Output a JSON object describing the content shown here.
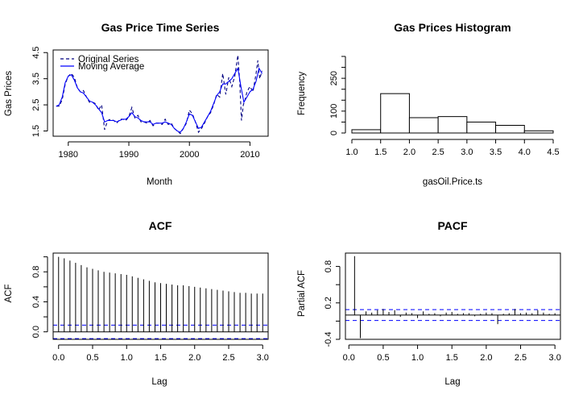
{
  "chart_data": [
    {
      "type": "line",
      "title": "Gas Price Time Series",
      "xlabel": "Month",
      "ylabel": "Gas Prices",
      "xlim": [
        1977.5,
        2013
      ],
      "ylim": [
        1.3,
        4.6
      ],
      "x_ticks": [
        "1980",
        "1990",
        "2000",
        "2010"
      ],
      "x_tick_values": [
        1980,
        1990,
        2000,
        2010
      ],
      "y_ticks": [
        "1.5",
        "2.5",
        "3.5",
        "4.5"
      ],
      "y_tick_values": [
        1.5,
        2.5,
        3.5,
        4.5
      ],
      "legend_position": "top-left",
      "series": [
        {
          "name": "Original Series",
          "style": "dashed",
          "color": "#000080",
          "x": [
            1978,
            1978.5,
            1979,
            1979.5,
            1980,
            1980.5,
            1981,
            1981.5,
            1982,
            1982.5,
            1983,
            1983.5,
            1984,
            1984.5,
            1985,
            1985.5,
            1986,
            1986.5,
            1987,
            1987.5,
            1988,
            1988.5,
            1989,
            1989.5,
            1990,
            1990.5,
            1991,
            1991.5,
            1992,
            1992.5,
            1993,
            1993.5,
            1994,
            1994.5,
            1995,
            1995.5,
            1996,
            1996.5,
            1997,
            1997.5,
            1998,
            1998.5,
            1999,
            1999.5,
            2000,
            2000.5,
            2001,
            2001.5,
            2002,
            2002.5,
            2003,
            2003.5,
            2004,
            2004.5,
            2005,
            2005.5,
            2006,
            2006.5,
            2007,
            2007.5,
            2008,
            2008.3,
            2008.6,
            2008.9,
            2009.2,
            2009.5,
            2010,
            2010.5,
            2011,
            2011.3,
            2011.6,
            2012
          ],
          "values": [
            2.45,
            2.45,
            2.7,
            3.3,
            3.6,
            3.7,
            3.55,
            3.15,
            3.0,
            3.05,
            2.8,
            2.6,
            2.6,
            2.55,
            2.3,
            2.5,
            1.55,
            1.9,
            1.95,
            1.9,
            1.8,
            1.95,
            1.95,
            1.9,
            2.05,
            2.4,
            2.0,
            2.1,
            1.85,
            1.85,
            1.8,
            1.9,
            1.7,
            1.8,
            1.8,
            1.75,
            1.95,
            1.75,
            1.8,
            1.6,
            1.5,
            1.4,
            1.6,
            1.8,
            2.3,
            2.15,
            1.85,
            1.45,
            1.6,
            1.8,
            2.05,
            2.2,
            2.5,
            2.9,
            2.8,
            3.7,
            2.9,
            3.55,
            3.2,
            3.6,
            4.4,
            3.4,
            1.9,
            2.5,
            2.7,
            3.0,
            3.2,
            3.0,
            3.7,
            4.2,
            3.5,
            3.8
          ]
        },
        {
          "name": "Moving Average",
          "style": "solid",
          "color": "#0000ff",
          "x": [
            1978,
            1978.5,
            1979,
            1979.5,
            1980,
            1980.5,
            1981,
            1981.5,
            1982,
            1982.5,
            1983,
            1983.5,
            1984,
            1984.5,
            1985,
            1985.5,
            1986,
            1986.5,
            1987,
            1987.5,
            1988,
            1988.5,
            1989,
            1989.5,
            1990,
            1990.5,
            1991,
            1991.5,
            1992,
            1992.5,
            1993,
            1993.5,
            1994,
            1994.5,
            1995,
            1995.5,
            1996,
            1996.5,
            1997,
            1997.5,
            1998,
            1998.5,
            1999,
            1999.5,
            2000,
            2000.5,
            2001,
            2001.5,
            2002,
            2002.5,
            2003,
            2003.5,
            2004,
            2004.5,
            2005,
            2005.5,
            2006,
            2006.5,
            2007,
            2007.5,
            2008,
            2008.5,
            2009,
            2009.5,
            2010,
            2010.5,
            2011,
            2011.5,
            2012
          ],
          "values": [
            2.45,
            2.5,
            2.8,
            3.35,
            3.6,
            3.65,
            3.45,
            3.15,
            3.0,
            2.95,
            2.8,
            2.65,
            2.6,
            2.5,
            2.35,
            2.2,
            1.85,
            1.9,
            1.9,
            1.9,
            1.85,
            1.9,
            1.95,
            1.95,
            2.05,
            2.2,
            2.05,
            2.0,
            1.9,
            1.85,
            1.85,
            1.85,
            1.75,
            1.8,
            1.8,
            1.8,
            1.85,
            1.8,
            1.75,
            1.6,
            1.5,
            1.45,
            1.6,
            1.85,
            2.15,
            2.1,
            1.85,
            1.6,
            1.65,
            1.85,
            2.05,
            2.25,
            2.55,
            2.85,
            3.0,
            3.3,
            3.3,
            3.4,
            3.5,
            3.7,
            3.9,
            3.2,
            2.6,
            2.8,
            3.0,
            3.1,
            3.4,
            3.9,
            3.7
          ]
        }
      ]
    },
    {
      "type": "bar",
      "title": "Gas Prices Histogram",
      "xlabel": "gasOil.Price.ts",
      "ylabel": "Frequency",
      "xlim": [
        1.0,
        4.5
      ],
      "ylim": [
        0,
        350
      ],
      "x_ticks": [
        "1.0",
        "1.5",
        "2.0",
        "2.5",
        "3.0",
        "3.5",
        "4.0",
        "4.5"
      ],
      "x_tick_values": [
        1.0,
        1.5,
        2.0,
        2.5,
        3.0,
        3.5,
        4.0,
        4.5
      ],
      "y_ticks": [
        "0",
        "100",
        "250"
      ],
      "y_tick_values": [
        0,
        50,
        100,
        150,
        200,
        250,
        300,
        350
      ],
      "y_tick_label_values": [
        0,
        100,
        250
      ],
      "bins": [
        [
          1.0,
          1.5
        ],
        [
          1.5,
          2.0
        ],
        [
          2.0,
          2.5
        ],
        [
          2.5,
          3.0
        ],
        [
          3.0,
          3.5
        ],
        [
          3.5,
          4.0
        ],
        [
          4.0,
          4.5
        ]
      ],
      "values": [
        15,
        180,
        70,
        75,
        50,
        35,
        10
      ]
    },
    {
      "type": "bar",
      "title": "ACF",
      "xlabel": "Lag",
      "ylabel": "ACF",
      "xlim": [
        -0.08,
        3.08
      ],
      "ylim": [
        -0.1,
        1.05
      ],
      "x_ticks": [
        "0.0",
        "0.5",
        "1.0",
        "1.5",
        "2.0",
        "2.5",
        "3.0"
      ],
      "x_tick_values": [
        0,
        0.5,
        1.0,
        1.5,
        2.0,
        2.5,
        3.0
      ],
      "y_ticks": [
        "0.0",
        "0.4",
        "0.8"
      ],
      "y_tick_values": [
        0.0,
        0.2,
        0.4,
        0.6,
        0.8,
        1.0
      ],
      "y_tick_label_values": [
        0.0,
        0.4,
        0.8
      ],
      "confidence_bounds": [
        0.09,
        -0.09
      ],
      "x": [
        0.0,
        0.083,
        0.167,
        0.25,
        0.333,
        0.417,
        0.5,
        0.583,
        0.667,
        0.75,
        0.833,
        0.917,
        1.0,
        1.083,
        1.167,
        1.25,
        1.333,
        1.417,
        1.5,
        1.583,
        1.667,
        1.75,
        1.833,
        1.917,
        2.0,
        2.083,
        2.167,
        2.25,
        2.333,
        2.417,
        2.5,
        2.583,
        2.667,
        2.75,
        2.833,
        2.917,
        3.0
      ],
      "values": [
        1.0,
        0.98,
        0.95,
        0.92,
        0.89,
        0.86,
        0.84,
        0.82,
        0.8,
        0.79,
        0.78,
        0.77,
        0.76,
        0.74,
        0.72,
        0.7,
        0.68,
        0.66,
        0.65,
        0.64,
        0.63,
        0.62,
        0.62,
        0.61,
        0.6,
        0.59,
        0.58,
        0.57,
        0.56,
        0.55,
        0.54,
        0.53,
        0.52,
        0.52,
        0.51,
        0.51,
        0.51
      ]
    },
    {
      "type": "bar",
      "title": "PACF",
      "xlabel": "Lag",
      "ylabel": "Partial ACF",
      "xlim": [
        -0.05,
        3.08
      ],
      "ylim": [
        -0.4,
        1.02
      ],
      "x_ticks": [
        "0.0",
        "0.5",
        "1.0",
        "1.5",
        "2.0",
        "2.5",
        "3.0"
      ],
      "x_tick_values": [
        0,
        0.5,
        1.0,
        1.5,
        2.0,
        2.5,
        3.0
      ],
      "y_ticks": [
        "-0.4",
        "0.2",
        "0.8"
      ],
      "y_tick_values": [
        -0.4,
        -0.1,
        0.2,
        0.5,
        0.8
      ],
      "y_tick_label_values": [
        -0.4,
        0.2,
        0.8
      ],
      "confidence_bounds": [
        0.09,
        -0.09
      ],
      "x": [
        0.083,
        0.167,
        0.25,
        0.333,
        0.417,
        0.5,
        0.583,
        0.667,
        0.75,
        0.833,
        0.917,
        1.0,
        1.083,
        1.167,
        1.25,
        1.333,
        1.417,
        1.5,
        1.583,
        1.667,
        1.75,
        1.833,
        1.917,
        2.0,
        2.083,
        2.167,
        2.25,
        2.333,
        2.417,
        2.5,
        2.583,
        2.667,
        2.75,
        2.833,
        2.917,
        3.0
      ],
      "values": [
        0.97,
        -0.38,
        0.06,
        0.04,
        0.08,
        0.1,
        0.05,
        0.08,
        -0.03,
        0.04,
        0.03,
        -0.05,
        0.06,
        0.02,
        0.03,
        -0.02,
        0.04,
        0.05,
        0.02,
        0.03,
        0.03,
        -0.02,
        0.02,
        0.04,
        0.03,
        -0.15,
        0.02,
        0.03,
        0.1,
        0.03,
        0.04,
        0.03,
        0.08,
        0.04,
        0.02,
        0.03
      ]
    }
  ]
}
